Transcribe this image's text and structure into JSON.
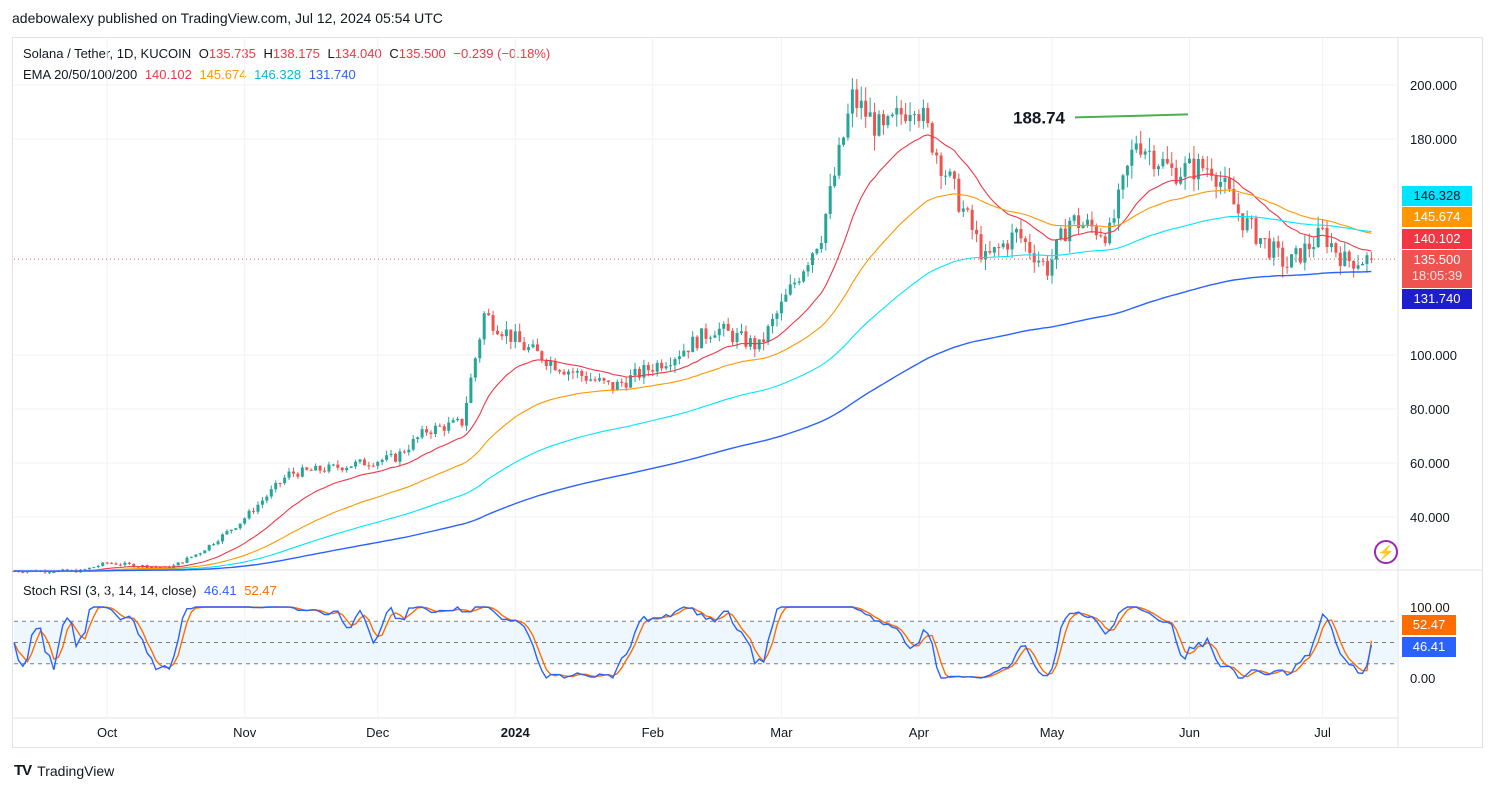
{
  "header": {
    "publisher_line": "adebowalexy published on TradingView.com, Jul 12, 2024 05:54 UTC"
  },
  "legend": {
    "symbol": "Solana / Tether, 1D, KUCOIN",
    "o_label": "O",
    "o_value": "135.735",
    "h_label": "H",
    "h_value": "138.175",
    "l_label": "L",
    "l_value": "134.040",
    "c_label": "C",
    "c_value": "135.500",
    "change": "−0.239 (−0.18%)",
    "ema_label": "EMA 20/50/100/200",
    "ema20": "140.102",
    "ema50": "145.674",
    "ema100": "146.328",
    "ema200": "131.740",
    "rsi_label": "Stoch RSI (3, 3, 14, 14, close)",
    "rsi_k": "46.41",
    "rsi_d": "52.47"
  },
  "annotation": {
    "label": "188.74"
  },
  "price_tags": {
    "ema100": "146.328",
    "ema50": "145.674",
    "ema20": "140.102",
    "last": "135.500",
    "countdown": "18:05:39",
    "ema200": "131.740"
  },
  "rsi_tags": {
    "d": "52.47",
    "k": "46.41"
  },
  "footer": {
    "brand": "TradingView",
    "logo": "TV"
  },
  "colors": {
    "up": "#26a69a",
    "down": "#ef5350",
    "ema20": "#f23645",
    "ema50": "#ff9800",
    "ema100": "#00e5ff",
    "ema200": "#2962ff",
    "stoch_k": "#2962ff",
    "stoch_d": "#ff6d00",
    "annotation": "#4caf50"
  },
  "chart_data": {
    "type": "candlestick",
    "title": "Solana / Tether, 1D, KUCOIN",
    "y_axis_ticks": [
      "200.000",
      "180.000",
      "100.000",
      "80.000",
      "60.000",
      "40.000"
    ],
    "y_axis_tick_values": [
      200,
      180,
      100,
      80,
      60,
      40
    ],
    "ylim": [
      20,
      210
    ],
    "x_axis_ticks": [
      "Oct",
      "Nov",
      "Dec",
      "2024",
      "Feb",
      "Mar",
      "Apr",
      "May",
      "Jun",
      "Jul"
    ],
    "x_axis_tick_dates": [
      "2023-10-01",
      "2023-11-01",
      "2023-12-01",
      "2024-01-01",
      "2024-02-01",
      "2024-03-01",
      "2024-04-01",
      "2024-05-01",
      "2024-06-01",
      "2024-07-01"
    ],
    "x_range": [
      "2023-09-10",
      "2024-07-18"
    ],
    "close_anchors": [
      [
        "2023-09-10",
        20
      ],
      [
        "2023-09-25",
        20
      ],
      [
        "2023-10-01",
        23
      ],
      [
        "2023-10-15",
        21
      ],
      [
        "2023-10-22",
        27
      ],
      [
        "2023-10-31",
        38
      ],
      [
        "2023-11-11",
        56
      ],
      [
        "2023-11-20",
        58
      ],
      [
        "2023-12-05",
        62
      ],
      [
        "2023-12-12",
        72
      ],
      [
        "2023-12-20",
        75
      ],
      [
        "2023-12-25",
        115
      ],
      [
        "2024-01-03",
        103
      ],
      [
        "2024-01-12",
        95
      ],
      [
        "2024-01-23",
        88
      ],
      [
        "2024-02-06",
        100
      ],
      [
        "2024-02-15",
        110
      ],
      [
        "2024-02-25",
        103
      ],
      [
        "2024-03-05",
        130
      ],
      [
        "2024-03-10",
        145
      ],
      [
        "2024-03-17",
        195
      ],
      [
        "2024-03-24",
        182
      ],
      [
        "2024-03-31",
        195
      ],
      [
        "2024-04-05",
        175
      ],
      [
        "2024-04-12",
        150
      ],
      [
        "2024-04-16",
        135
      ],
      [
        "2024-04-23",
        145
      ],
      [
        "2024-04-30",
        132
      ],
      [
        "2024-05-05",
        150
      ],
      [
        "2024-05-14",
        145
      ],
      [
        "2024-05-20",
        180
      ],
      [
        "2024-05-28",
        168
      ],
      [
        "2024-06-06",
        170
      ],
      [
        "2024-06-13",
        150
      ],
      [
        "2024-06-23",
        133
      ],
      [
        "2024-07-01",
        145
      ],
      [
        "2024-07-06",
        135
      ],
      [
        "2024-07-11",
        135.5
      ]
    ],
    "annotated_high": {
      "date": "2024-05-21",
      "value": 188.74
    },
    "last": {
      "open": 135.735,
      "high": 138.175,
      "low": 134.04,
      "close": 135.5,
      "change": -0.239,
      "change_pct": -0.18
    },
    "ema": {
      "ema20": 140.102,
      "ema50": 145.674,
      "ema100": 146.328,
      "ema200": 131.74
    },
    "stoch_rsi": {
      "params": "3, 3, 14, 14, close",
      "k": 46.41,
      "d": 52.47,
      "ylim": [
        0,
        100
      ],
      "y_axis_ticks": [
        "100.00",
        "0.00"
      ],
      "bands": [
        80,
        50,
        20
      ]
    }
  }
}
